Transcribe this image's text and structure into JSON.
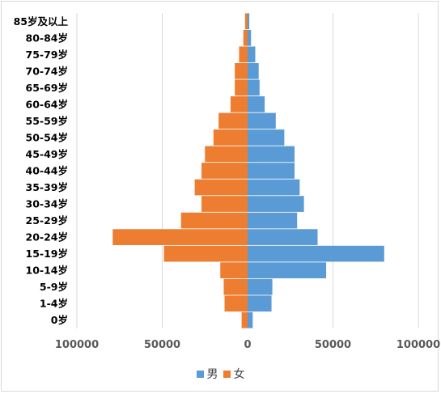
{
  "chart_data": {
    "type": "bar",
    "orientation": "horizontal",
    "categories": [
      "0岁",
      "1-4岁",
      "5-9岁",
      "10-14岁",
      "15-19岁",
      "20-24岁",
      "25-29岁",
      "30-34岁",
      "35-39岁",
      "40-44岁",
      "45-49岁",
      "50-54岁",
      "55-59岁",
      "60-64岁",
      "65-69岁",
      "70-74岁",
      "75-79岁",
      "80-84岁",
      "85岁及以上"
    ],
    "series": [
      {
        "name": "男",
        "color": "#5b9bd5",
        "values": [
          3000,
          14000,
          14500,
          46000,
          80000,
          41000,
          29000,
          33000,
          30500,
          27500,
          27500,
          21500,
          16500,
          10000,
          7000,
          6500,
          4500,
          2000,
          1000
        ]
      },
      {
        "name": "女",
        "color": "#ed7d31",
        "values": [
          3500,
          13500,
          14000,
          16000,
          49000,
          79000,
          39000,
          27000,
          31000,
          27000,
          25000,
          20000,
          17000,
          10000,
          7500,
          7500,
          5000,
          2500,
          1500
        ]
      }
    ],
    "x_ticks": [
      "100000",
      "50000",
      "0",
      "50000",
      "100000"
    ],
    "xlim": [
      -100000,
      100000
    ],
    "grid": true,
    "legend_position": "bottom"
  }
}
